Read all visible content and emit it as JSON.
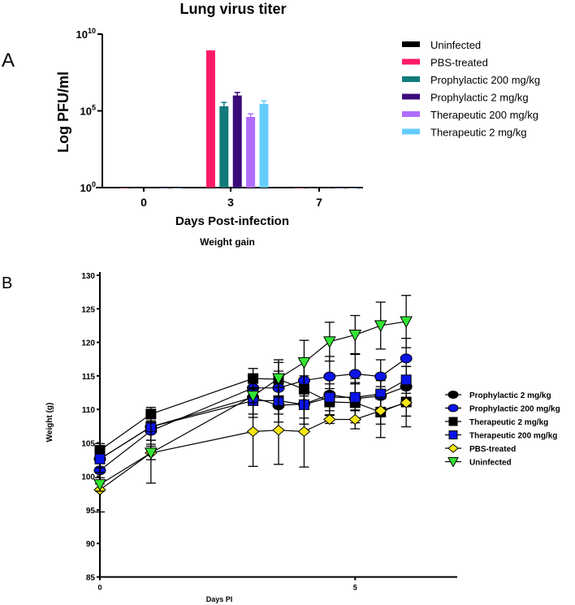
{
  "chart_data": [
    {
      "panel_label": "A",
      "type": "bar",
      "title": "Lung virus titer",
      "xlabel": "Days Post-infection",
      "ylabel": "Log PFU/ml",
      "yscale": "log",
      "ylim_exp": [
        0,
        10
      ],
      "yticks": [
        {
          "exp": 0,
          "label": "10",
          "sup": "0"
        },
        {
          "exp": 5,
          "label": "10",
          "sup": "5"
        },
        {
          "exp": 10,
          "label": "10",
          "sup": "10"
        }
      ],
      "categories": [
        "0",
        "3",
        "7"
      ],
      "legend_position": "right",
      "series": [
        {
          "name": "Uninfected",
          "color": "#000000",
          "values": [
            1,
            1,
            1
          ],
          "err": [
            0,
            0,
            0
          ]
        },
        {
          "name": "PBS-treated",
          "color": "#ff1a66",
          "values": [
            1,
            870000000,
            1
          ],
          "err": [
            0,
            0,
            0
          ]
        },
        {
          "name": "Prophylactic 200 mg/kg",
          "color": "#127a7a",
          "values": [
            1,
            200000,
            1
          ],
          "err": [
            0,
            0.25,
            0
          ]
        },
        {
          "name": "Prophylactic 2 mg/kg",
          "color": "#3b0a7a",
          "values": [
            1,
            1000000,
            1
          ],
          "err": [
            0,
            0.2,
            0
          ]
        },
        {
          "name": "Therapeutic 200 mg/kg",
          "color": "#b06cff",
          "values": [
            1,
            40000,
            1
          ],
          "err": [
            0,
            0.2,
            0
          ]
        },
        {
          "name": "Therapeutic 2 mg/kg",
          "color": "#66ccff",
          "values": [
            1,
            280000,
            1
          ],
          "err": [
            0,
            0.2,
            0
          ]
        }
      ]
    },
    {
      "panel_label": "B",
      "type": "line",
      "title": "Weight gain",
      "xlabel": "Days PI",
      "ylabel": "Weight (g)",
      "xlim": [
        0,
        7
      ],
      "ylim": [
        85,
        130
      ],
      "xticks": [
        0,
        5
      ],
      "yticks": [
        85,
        90,
        95,
        100,
        105,
        110,
        115,
        120,
        125,
        130
      ],
      "x": [
        0,
        1,
        3,
        3.5,
        4,
        4.5,
        5,
        5.5,
        6
      ],
      "legend_position": "right",
      "series": [
        {
          "name": "Prophylactic 2 mg/kg",
          "marker": "circle",
          "color": "#000000",
          "values": [
            102.6,
            107.4,
            111.8,
            110.6,
            110.8,
            112.2,
            111.6,
            112.0,
            113.4
          ],
          "err": [
            2,
            2,
            3,
            2.5,
            3,
            3,
            3,
            2.5,
            3
          ]
        },
        {
          "name": "Prophylactic 200 mg/kg",
          "marker": "circle",
          "color": "#0a14e6",
          "values": [
            100.9,
            106.8,
            113.2,
            113.2,
            114.3,
            114.9,
            115.3,
            114.9,
            117.6
          ],
          "err": [
            2,
            2,
            2,
            2.5,
            3,
            3,
            3,
            2.5,
            3
          ]
        },
        {
          "name": "Therapeutic 2 mg/kg",
          "marker": "square",
          "color": "#000000",
          "values": [
            103.9,
            109.3,
            114.6,
            114.5,
            113.0,
            111.1,
            111.0,
            109.6,
            111.1
          ],
          "err": [
            1,
            1,
            1.5,
            2.5,
            2,
            2,
            3,
            3.8,
            3.7
          ]
        },
        {
          "name": "Therapeutic 200 mg/kg",
          "marker": "square",
          "color": "#0a14e6",
          "values": [
            102.6,
            107.4,
            111.3,
            111.3,
            110.7,
            111.8,
            111.8,
            112.3,
            114.4
          ],
          "err": [
            2,
            2,
            2,
            2,
            2,
            2,
            2,
            2,
            2
          ]
        },
        {
          "name": "PBS-treated",
          "marker": "diamond",
          "color": "#f5e614",
          "values": [
            98.0,
            103.5,
            106.7,
            106.9,
            106.7,
            108.5,
            108.5,
            109.8,
            111.0
          ],
          "err": [
            3.3,
            4.5,
            5.2,
            5.1,
            5.3,
            0.6,
            1.4,
            2,
            2
          ]
        },
        {
          "name": "Uninfected",
          "marker": "triangle-down",
          "color": "#33e633",
          "values": [
            98.8,
            103.5,
            112.0,
            114.6,
            117.0,
            120.1,
            121.1,
            122.5,
            123.1
          ],
          "err": [
            1,
            1,
            1,
            2.8,
            3.3,
            2.9,
            2.9,
            3.5,
            3.9
          ]
        }
      ]
    }
  ]
}
